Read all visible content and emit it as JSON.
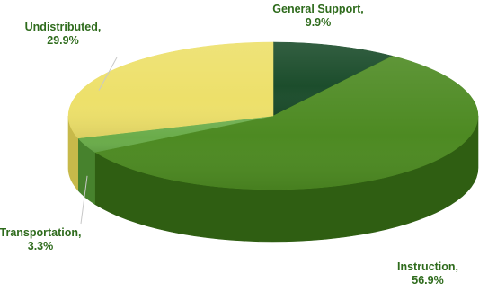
{
  "chart_data": {
    "type": "pie",
    "style": "3d",
    "title": "",
    "legend": "none",
    "start_angle_deg": 0,
    "direction": "clockwise",
    "slices": [
      {
        "category": "General Support",
        "value": 9.9,
        "name_label": "General Support,",
        "pct_label": "9.9%",
        "color": "#1c4d2c",
        "side_color": "#123a1f"
      },
      {
        "category": "Instruction",
        "value": 56.9,
        "name_label": "Instruction,",
        "pct_label": "56.9%",
        "color": "#4d8a22",
        "side_color": "#2f5e12"
      },
      {
        "category": "Transportation",
        "value": 3.3,
        "name_label": "Transportation,",
        "pct_label": "3.3%",
        "color": "#6aac4a",
        "side_color": "#47822d"
      },
      {
        "category": "Undistributed",
        "value": 29.9,
        "name_label": "Undistributed,",
        "pct_label": "29.9%",
        "color": "#ede06a",
        "side_color": "#c7b94a"
      }
    ],
    "label_text_color": "#2e6b1c",
    "leader_line_color": "#c8c8c8"
  }
}
